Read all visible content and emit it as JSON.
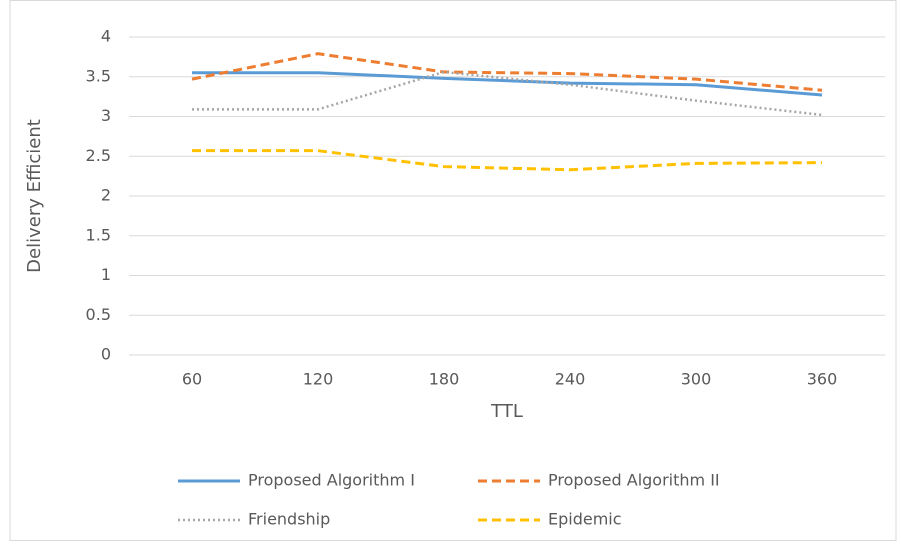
{
  "chart_data": {
    "type": "line",
    "x_label": "TTL",
    "y_label": "Delivery Efficient",
    "categories": [
      "60",
      "120",
      "180",
      "240",
      "300",
      "360"
    ],
    "series": [
      {
        "name": "Proposed Algorithm I",
        "color": "#5b9bd5",
        "dash": "solid",
        "values": [
          3.55,
          3.55,
          3.48,
          3.42,
          3.4,
          3.27
        ]
      },
      {
        "name": "Proposed Algorithm II",
        "color": "#ed7d31",
        "dash": "dashed",
        "values": [
          3.47,
          3.79,
          3.56,
          3.54,
          3.47,
          3.33
        ]
      },
      {
        "name": "Friendship",
        "color": "#a5a5a5",
        "dash": "dotted",
        "values": [
          3.09,
          3.09,
          3.56,
          3.4,
          3.2,
          3.02
        ]
      },
      {
        "name": "Epidemic",
        "color": "#ffc000",
        "dash": "dashed",
        "values": [
          2.57,
          2.57,
          2.37,
          2.33,
          2.41,
          2.42
        ]
      }
    ],
    "ylim": [
      0,
      4
    ],
    "yticks": [
      0,
      0.5,
      1,
      1.5,
      2,
      2.5,
      3,
      3.5,
      4
    ],
    "grid": true,
    "legend": "bottom"
  }
}
